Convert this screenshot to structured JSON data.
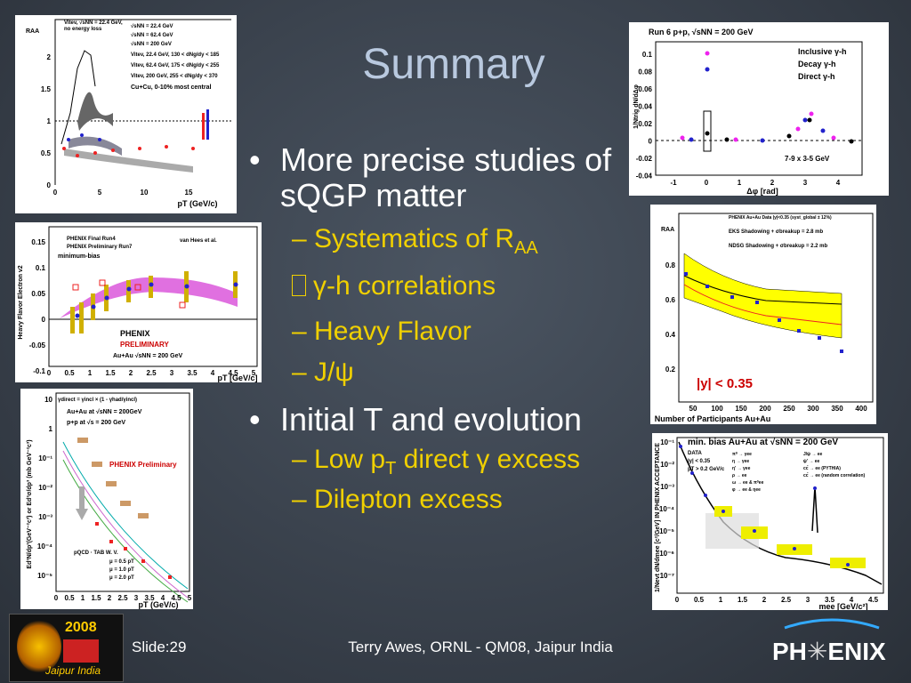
{
  "slide": {
    "title": "Summary",
    "bullets": [
      {
        "text": "More precise studies of sQGP matter",
        "items": [
          {
            "text": "Systematics of R",
            "sub": "AA"
          },
          {
            "text": "γ-h correlations"
          },
          {
            "text": "Heavy Flavor"
          },
          {
            "text": "J/ψ"
          }
        ]
      },
      {
        "text": "Initial T and evolution",
        "items": [
          {
            "text": "Low p",
            "sub": "T",
            "rest": "direct γ excess"
          },
          {
            "text": "Dilepton excess"
          }
        ]
      }
    ],
    "footer": {
      "slide": "Slide:29",
      "author": "Terry Awes, ORNL - QM08, Jaipur India",
      "logo_left_year": "2008",
      "logo_left_place": "Jaipur India",
      "logo_right_a": "PH",
      "logo_right_b": "ENIX"
    }
  },
  "figures": [
    {
      "ylabel": "RAA",
      "xlabel": "pT (GeV/c)",
      "yticks": [
        "0",
        "0.5",
        "1",
        "1.5",
        "2"
      ],
      "xticks": [
        "0",
        "5",
        "10",
        "15"
      ],
      "legend": [
        "Vitev, √sNN = 22.4 GeV,",
        "no energy loss",
        "√sNN = 22.4 GeV",
        "√sNN = 62.4 GeV",
        "√sNN = 200 GeV",
        "Vitev, 22.4 GeV, 130 < dNg/dy < 185",
        "Vitev, 62.4 GeV, 175 < dNg/dy < 255",
        "Vitev, 200 GeV, 255 < dNg/dy < 370",
        "Cu+Cu, 0-10% most central"
      ]
    },
    {
      "ylabel": "Heavy Flavor Electron v2",
      "xlabel": "pT [GeV/c]",
      "yticks": [
        "0.15",
        "0.1",
        "0.05",
        "0",
        "-0.05",
        "-0.1"
      ],
      "xticks": [
        "0",
        "0.5",
        "1",
        "1.5",
        "2",
        "2.5",
        "3",
        "3.5",
        "4",
        "4.5",
        "5"
      ],
      "legend": [
        "PHENIX Final Run4",
        "PHENIX Preliminary Run7",
        "van Hees et al.",
        "minimum-bias",
        "PHENIX",
        "PRELIMINARY",
        "Au+Au √sNN = 200 GeV"
      ]
    },
    {
      "ylabel": "Ed³N/dp³(GeV⁻²c³) or Ed³σ/dp³ (mb GeV⁻²c³)",
      "xlabel": "pT (GeV/c)",
      "yticks": [
        "10",
        "1",
        "10⁻¹",
        "10⁻²",
        "10⁻³",
        "10⁻⁴",
        "10⁻⁵"
      ],
      "xticks": [
        "0",
        "0.5",
        "1",
        "1.5",
        "2",
        "2.5",
        "3",
        "3.5",
        "4",
        "4.5",
        "5"
      ],
      "legend": [
        "γdirect = γincl × (1 - γhad/γincl)",
        "Au+Au at √sNN = 200GeV",
        "p+p at √s = 200 GeV",
        "PHENIX Preliminary",
        "pQCD · TAB W. V.",
        "μ = 0.5 pT",
        "μ = 1.0 pT",
        "μ = 2.0 pT"
      ]
    },
    {
      "ylabel": "1/Ntrig dN/dΔφ",
      "xlabel": "Δφ [rad]",
      "yticks": [
        "0.1",
        "0.08",
        "0.06",
        "0.04",
        "0.02",
        "0",
        "-0.02",
        "-0.04"
      ],
      "xticks": [
        "-1",
        "0",
        "1",
        "2",
        "3",
        "4"
      ],
      "legend": [
        "Run 6 p+p, √sNN = 200 GeV",
        "Inclusive γ-h",
        "Decay γ-h",
        "Direct γ-h",
        "7-9 x 3-5 GeV"
      ]
    },
    {
      "ylabel": "RAA",
      "xlabel": "Number of Participants Au+Au",
      "yticks": [
        "0.8",
        "0.6",
        "0.4",
        "0.2"
      ],
      "xticks": [
        "50",
        "100",
        "150",
        "200",
        "250",
        "300",
        "350",
        "400"
      ],
      "legend": [
        "PHENIX Au+Au Data |y|<0.35 (syst_global ± 12%)",
        "EKS Shadowing + σbreakup = 2.8 mb",
        "NDSG Shadowing + σbreakup = 2.2 mb",
        "|y| < 0.35"
      ]
    },
    {
      "ylabel": "1/Nevt dN/dmee [c²/GeV] IN PHENIX ACCEPTANCE",
      "xlabel": "mee [GeV/c²]",
      "yticks": [
        "10⁻¹",
        "10⁻²",
        "10⁻³",
        "10⁻⁴",
        "10⁻⁵",
        "10⁻⁶",
        "10⁻⁷"
      ],
      "xticks": [
        "0",
        "0.5",
        "1",
        "1.5",
        "2",
        "2.5",
        "3",
        "3.5",
        "4",
        "4.5"
      ],
      "legend": [
        "min. bias Au+Au at √sNN = 200 GeV",
        "DATA",
        "|y| < 0.35",
        "pT > 0.2 GeV/c",
        "π⁰ → γee",
        "η → γee",
        "η' → γee",
        "ρ → ee",
        "ω → ee & π⁰ee",
        "φ → ee & ηee",
        "J/ψ → ee",
        "ψ' → ee",
        "cc̄ → ee (PYTHIA)",
        "cc̄ → ee (random correlation)"
      ]
    }
  ]
}
